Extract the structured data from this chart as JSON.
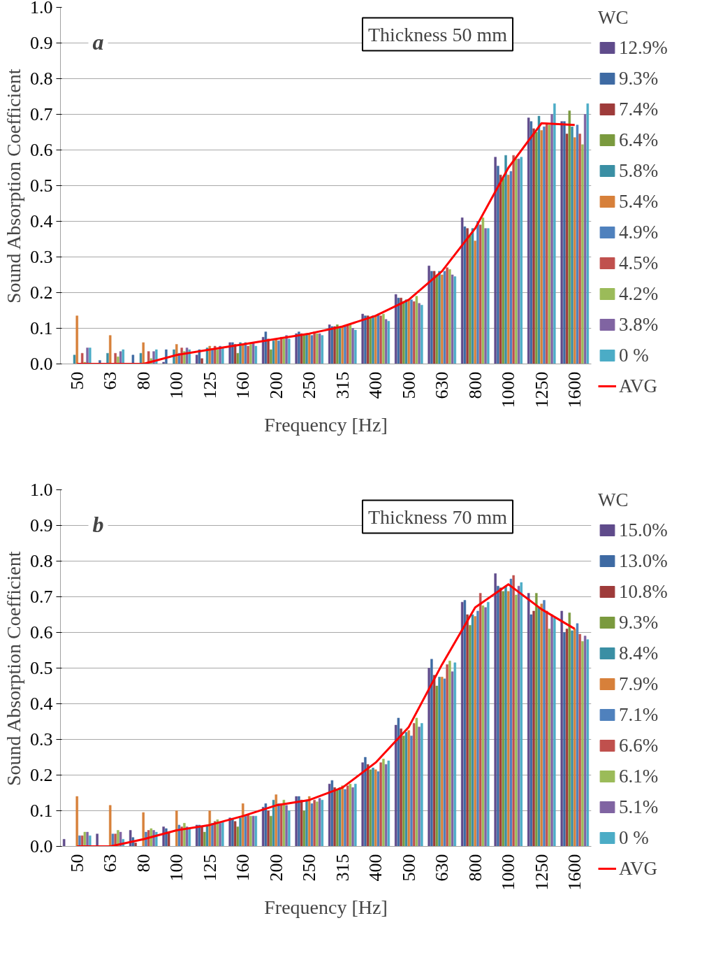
{
  "chart_data": [
    {
      "type": "bar",
      "title": "Thickness 50 mm",
      "annotations": [
        "a"
      ],
      "xlabel": "Frequency [Hz]",
      "ylabel": "Sound Absorption Coefficient",
      "legend_title": "WC",
      "legend": "right",
      "grid": "y",
      "categories": [
        "50",
        "63",
        "80",
        "100",
        "125",
        "160",
        "200",
        "250",
        "315",
        "400",
        "500",
        "630",
        "800",
        "1000",
        "1250",
        "1600"
      ],
      "ylim": [
        0,
        1
      ],
      "yticks": [
        {
          "value": 0,
          "label": "0.0"
        },
        {
          "value": 0.1,
          "label": "0.1"
        },
        {
          "value": 0.2,
          "label": "0.2"
        },
        {
          "value": 0.3,
          "label": "0.3"
        },
        {
          "value": 0.4,
          "label": "0.4"
        },
        {
          "value": 0.5,
          "label": "0.5"
        },
        {
          "value": 0.6,
          "label": "0.6"
        },
        {
          "value": 0.7,
          "label": "0.7"
        },
        {
          "value": 0.8,
          "label": "0.8"
        },
        {
          "value": 0.9,
          "label": "0.9"
        },
        {
          "value": 1,
          "label": "1.0"
        }
      ],
      "series": [
        {
          "name": "12.9%",
          "color": "#5f4b8b",
          "values": [
            0,
            0,
            0,
            0.005,
            0.025,
            0.06,
            0.075,
            0.085,
            0.11,
            0.14,
            0.195,
            0.275,
            0.41,
            0.58,
            0.69,
            0.68
          ]
        },
        {
          "name": "9.3%",
          "color": "#3e6aa3",
          "values": [
            0,
            0.01,
            0.025,
            0.04,
            0.04,
            0.06,
            0.09,
            0.09,
            0.105,
            0.135,
            0.185,
            0.26,
            0.385,
            0.555,
            0.68,
            0.68
          ]
        },
        {
          "name": "7.4%",
          "color": "#9e3b3a",
          "values": [
            0,
            0,
            0,
            0,
            0.015,
            0.055,
            0.07,
            0.085,
            0.105,
            0.135,
            0.185,
            0.26,
            0.38,
            0.53,
            0.66,
            0.645
          ]
        },
        {
          "name": "6.4%",
          "color": "#7a9a3e",
          "values": [
            0,
            0,
            0,
            0,
            0,
            0.03,
            0.04,
            0.08,
            0.11,
            0.13,
            0.175,
            0.25,
            0.36,
            0.52,
            0.65,
            0.71
          ]
        },
        {
          "name": "5.8%",
          "color": "#3a8fa4",
          "values": [
            0.025,
            0.03,
            0.03,
            0.04,
            0.045,
            0.06,
            0.065,
            0.085,
            0.1,
            0.135,
            0.18,
            0.26,
            0.38,
            0.585,
            0.695,
            0.665
          ]
        },
        {
          "name": "5.4%",
          "color": "#d7803a",
          "values": [
            0.135,
            0.08,
            0.06,
            0.055,
            0.05,
            0.055,
            0.07,
            0.085,
            0.105,
            0.135,
            0.18,
            0.25,
            0.345,
            0.53,
            0.655,
            0.635
          ]
        },
        {
          "name": "4.9%",
          "color": "#4f81bd",
          "values": [
            0,
            0,
            0,
            0.03,
            0.04,
            0.06,
            0.065,
            0.08,
            0.105,
            0.14,
            0.18,
            0.26,
            0.4,
            0.54,
            0.665,
            0.67
          ]
        },
        {
          "name": "4.5%",
          "color": "#c0504d",
          "values": [
            0.03,
            0.03,
            0.035,
            0.045,
            0.05,
            0.05,
            0.075,
            0.09,
            0.11,
            0.135,
            0.175,
            0.27,
            0.39,
            0.585,
            0.675,
            0.645
          ]
        },
        {
          "name": "4.2%",
          "color": "#9bbb59",
          "values": [
            0.005,
            0.02,
            0.015,
            0.035,
            0.04,
            0.055,
            0.07,
            0.085,
            0.11,
            0.14,
            0.19,
            0.265,
            0.41,
            0.575,
            0.67,
            0.615
          ]
        },
        {
          "name": "3.8%",
          "color": "#8064a2",
          "values": [
            0.045,
            0.035,
            0.035,
            0.045,
            0.05,
            0.06,
            0.08,
            0.085,
            0.1,
            0.125,
            0.17,
            0.25,
            0.38,
            0.575,
            0.7,
            0.7
          ]
        },
        {
          "name": "0 %",
          "color": "#4bacc6",
          "values": [
            0.045,
            0.04,
            0.04,
            0.04,
            0.045,
            0.05,
            0.07,
            0.08,
            0.095,
            0.12,
            0.165,
            0.245,
            0.38,
            0.58,
            0.73,
            0.73
          ]
        },
        {
          "name": "AVG",
          "type": "line",
          "color": "#ff0000",
          "values": [
            0,
            0,
            0,
            0.025,
            0.04,
            0.055,
            0.07,
            0.085,
            0.105,
            0.135,
            0.18,
            0.26,
            0.38,
            0.55,
            0.675,
            0.67
          ]
        }
      ]
    },
    {
      "type": "bar",
      "title": "Thickness 70 mm",
      "annotations": [
        "b"
      ],
      "xlabel": "Frequency [Hz]",
      "ylabel": "Sound Absorption Coefficient",
      "legend_title": "WC",
      "legend": "right",
      "grid": "y",
      "categories": [
        "50",
        "63",
        "80",
        "100",
        "125",
        "160",
        "200",
        "250",
        "315",
        "400",
        "500",
        "630",
        "800",
        "1000",
        "1250",
        "1600"
      ],
      "ylim": [
        0,
        1
      ],
      "yticks": [
        {
          "value": 0,
          "label": "0.0"
        },
        {
          "value": 0.1,
          "label": "0.1"
        },
        {
          "value": 0.2,
          "label": "0.2"
        },
        {
          "value": 0.3,
          "label": "0.3"
        },
        {
          "value": 0.4,
          "label": "0.4"
        },
        {
          "value": 0.5,
          "label": "0.5"
        },
        {
          "value": 0.6,
          "label": "0.6"
        },
        {
          "value": 0.7,
          "label": "0.7"
        },
        {
          "value": 0.8,
          "label": "0.8"
        },
        {
          "value": 0.9,
          "label": "0.9"
        },
        {
          "value": 1,
          "label": "1.0"
        }
      ],
      "series": [
        {
          "name": "15.0%",
          "color": "#5f4b8b",
          "values": [
            0.02,
            0.035,
            0.045,
            0.055,
            0.06,
            0.08,
            0.11,
            0.14,
            0.175,
            0.235,
            0.34,
            0.5,
            0.685,
            0.765,
            0.71,
            0.66
          ]
        },
        {
          "name": "13.0%",
          "color": "#3e6aa3",
          "values": [
            0,
            0,
            0.025,
            0.05,
            0.06,
            0.075,
            0.12,
            0.14,
            0.185,
            0.25,
            0.36,
            0.525,
            0.69,
            0.73,
            0.65,
            0.6
          ]
        },
        {
          "name": "10.8%",
          "color": "#9e3b3a",
          "values": [
            0,
            0,
            0.01,
            0.04,
            0.055,
            0.07,
            0.1,
            0.13,
            0.165,
            0.23,
            0.33,
            0.48,
            0.65,
            0.725,
            0.66,
            0.61
          ]
        },
        {
          "name": "9.3%",
          "color": "#7a9a3e",
          "values": [
            0,
            0,
            0,
            0,
            0.04,
            0.055,
            0.085,
            0.1,
            0.16,
            0.215,
            0.31,
            0.45,
            0.62,
            0.715,
            0.71,
            0.655
          ]
        },
        {
          "name": "8.4%",
          "color": "#3a8fa4",
          "values": [
            0,
            0,
            0,
            0,
            0.06,
            0.08,
            0.13,
            0.13,
            0.165,
            0.22,
            0.32,
            0.475,
            0.65,
            0.73,
            0.67,
            0.605
          ]
        },
        {
          "name": "7.9%",
          "color": "#d7803a",
          "values": [
            0.14,
            0.115,
            0.095,
            0.1,
            0.1,
            0.12,
            0.145,
            0.14,
            0.17,
            0.215,
            0.325,
            0.475,
            0.645,
            0.715,
            0.68,
            0.61
          ]
        },
        {
          "name": "7.1%",
          "color": "#4f81bd",
          "values": [
            0.03,
            0.035,
            0.04,
            0.06,
            0.065,
            0.085,
            0.12,
            0.12,
            0.16,
            0.21,
            0.31,
            0.47,
            0.66,
            0.75,
            0.69,
            0.625
          ]
        },
        {
          "name": "6.6%",
          "color": "#c0504d",
          "values": [
            0.03,
            0.035,
            0.045,
            0.055,
            0.07,
            0.09,
            0.12,
            0.13,
            0.17,
            0.235,
            0.345,
            0.51,
            0.71,
            0.76,
            0.66,
            0.595
          ]
        },
        {
          "name": "6.1%",
          "color": "#9bbb59",
          "values": [
            0.04,
            0.045,
            0.05,
            0.065,
            0.075,
            0.085,
            0.13,
            0.125,
            0.175,
            0.245,
            0.36,
            0.52,
            0.675,
            0.705,
            0.61,
            0.575
          ]
        },
        {
          "name": "5.1%",
          "color": "#8064a2",
          "values": [
            0.04,
            0.04,
            0.045,
            0.055,
            0.065,
            0.085,
            0.115,
            0.135,
            0.165,
            0.23,
            0.335,
            0.49,
            0.67,
            0.73,
            0.65,
            0.59
          ]
        },
        {
          "name": "0 %",
          "color": "#4bacc6",
          "values": [
            0.03,
            0.02,
            0.04,
            0.05,
            0.07,
            0.085,
            0.1,
            0.13,
            0.175,
            0.24,
            0.345,
            0.515,
            0.685,
            0.74,
            0.64,
            0.58
          ]
        },
        {
          "name": "AVG",
          "type": "line",
          "color": "#ff0000",
          "values": [
            0,
            0,
            0.02,
            0.045,
            0.06,
            0.085,
            0.115,
            0.13,
            0.165,
            0.235,
            0.335,
            0.51,
            0.67,
            0.735,
            0.665,
            0.61
          ]
        }
      ]
    }
  ]
}
